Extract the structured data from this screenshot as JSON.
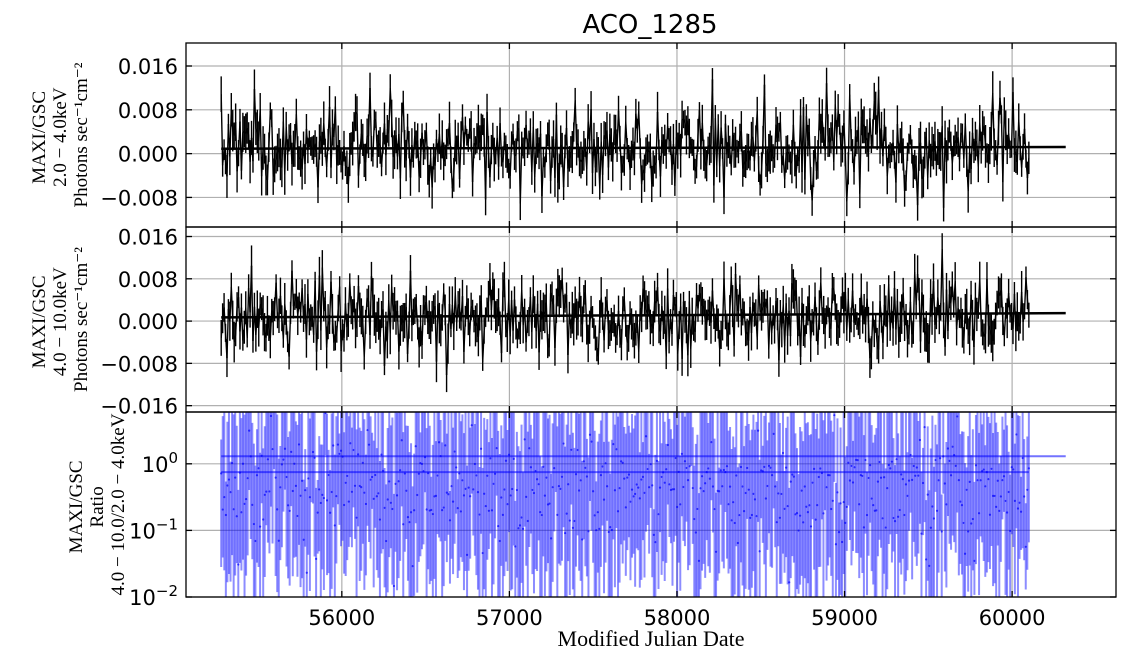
{
  "chart_data": [
    {
      "type": "line",
      "title": "ACO_1285",
      "ylabel_lines": [
        "MAXI/GSC",
        "2.0 − 4.0keV",
        "Photons sec⁻¹cm⁻²"
      ],
      "xlabel": "",
      "xlim": [
        55070,
        60620
      ],
      "ylim": [
        -0.0134,
        0.0202
      ],
      "yticks": [
        -0.008,
        0.0,
        0.008,
        0.016
      ],
      "ytick_labels": [
        "−0.008",
        "0.000",
        "0.008",
        "0.016"
      ],
      "xticks": [
        56000,
        57000,
        58000,
        59000,
        60000
      ],
      "grid": true,
      "series": [
        {
          "color": "#000000",
          "x_start": 55280,
          "x_end": 60100,
          "points": 560,
          "mean": 0.0012,
          "noise": 0.0035,
          "min": -0.0105,
          "max": 0.0163,
          "seed": 7
        },
        {
          "kind": "fit",
          "color": "#000000",
          "x": [
            55280,
            60320
          ],
          "y": [
            0.0009,
            0.0012
          ]
        }
      ]
    },
    {
      "type": "line",
      "title": "",
      "ylabel_lines": [
        "MAXI/GSC",
        "4.0 − 10.0keV",
        "Photons sec⁻¹cm⁻²"
      ],
      "xlabel": "",
      "xlim": [
        55070,
        60620
      ],
      "ylim": [
        -0.0172,
        0.0178
      ],
      "yticks": [
        -0.016,
        -0.008,
        0.0,
        0.008,
        0.016
      ],
      "ytick_labels": [
        "−0.016",
        "−0.008",
        "0.000",
        "0.008",
        "0.016"
      ],
      "xticks": [
        56000,
        57000,
        58000,
        59000,
        60000
      ],
      "grid": true,
      "series": [
        {
          "color": "#000000",
          "x_start": 55280,
          "x_end": 60100,
          "points": 560,
          "mean": 0.0008,
          "noise": 0.0036,
          "min": -0.0145,
          "max": 0.0145,
          "seed": 19
        },
        {
          "kind": "fit",
          "color": "#000000",
          "x": [
            55280,
            60320
          ],
          "y": [
            0.0007,
            0.0015
          ]
        }
      ]
    },
    {
      "type": "scatter",
      "title": "",
      "ylabel_lines": [
        "MAXI/GSC",
        "Ratio",
        "4.0 − 10.0/2.0 − 4.0keV"
      ],
      "xlabel": "Modified Julian Date",
      "xlim": [
        55070,
        60620
      ],
      "ylim": [
        0.01,
        6.0
      ],
      "yscale": "log",
      "yticks": [
        0.01,
        0.1,
        1.0
      ],
      "ytick_labels": [
        {
          "base": "10",
          "exp": "−2"
        },
        {
          "base": "10",
          "exp": "−1"
        },
        {
          "base": "10",
          "exp": "0"
        }
      ],
      "xticks": [
        56000,
        57000,
        58000,
        59000,
        60000
      ],
      "xtick_labels": [
        "56000",
        "57000",
        "58000",
        "59000",
        "60000"
      ],
      "grid": true,
      "series": [
        {
          "color": "#0000ff",
          "x_start": 55280,
          "x_end": 60100,
          "points": 520,
          "seed": 31
        },
        {
          "kind": "fit",
          "color": "#0000ff",
          "x": [
            55280,
            60320
          ],
          "y": [
            1.3,
            1.3
          ]
        },
        {
          "kind": "fit",
          "color": "#0000ff",
          "x": [
            55280,
            60100
          ],
          "y": [
            0.75,
            0.75
          ]
        }
      ]
    }
  ]
}
